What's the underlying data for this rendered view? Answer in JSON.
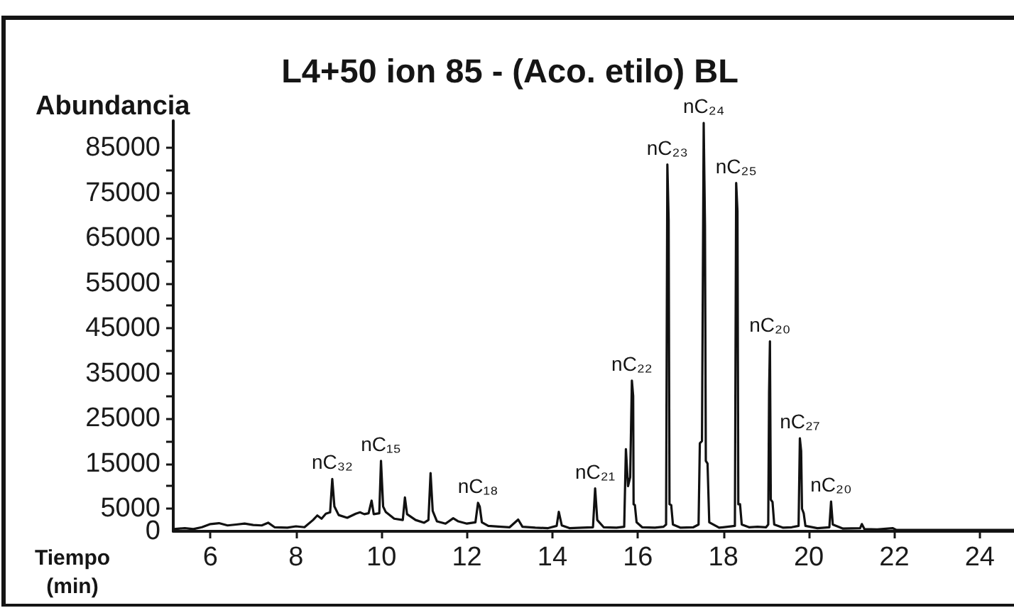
{
  "chart_data": {
    "type": "line",
    "title": "L4+50 ion 85 - (Aco. etilo) BL",
    "xlabel": "Tiempo\n(min)",
    "ylabel": "Abundancia",
    "color": "#111111",
    "marker": "none",
    "xlim": [
      5.13,
      24.8
    ],
    "xticks": [
      6,
      8,
      10,
      12,
      14,
      16,
      18,
      20,
      22,
      24
    ],
    "ylim": [
      0,
      91000
    ],
    "yticks": [
      0,
      5000,
      {
        "value": 10000,
        "label": null
      },
      15000,
      {
        "value": 20000,
        "label": null
      },
      25000,
      {
        "value": 30000,
        "label": null
      },
      35000,
      {
        "value": 40000,
        "label": null
      },
      45000,
      {
        "value": 50000,
        "label": null
      },
      55000,
      {
        "value": 60000,
        "label": null
      },
      65000,
      {
        "value": 70000,
        "label": null
      },
      75000,
      {
        "value": 80000,
        "label": null
      },
      85000
    ],
    "x": [
      5.15,
      5.4,
      5.6,
      5.8,
      6.0,
      6.2,
      6.4,
      6.6,
      6.8,
      7.0,
      7.2,
      7.35,
      7.5,
      7.8,
      8.0,
      8.2,
      8.4,
      8.5,
      8.6,
      8.7,
      8.8,
      8.85,
      8.9,
      9.0,
      9.2,
      9.4,
      9.5,
      9.6,
      9.7,
      9.77,
      9.82,
      9.95,
      9.99,
      10.04,
      10.1,
      10.3,
      10.5,
      10.55,
      10.6,
      10.8,
      11.0,
      11.1,
      11.15,
      11.2,
      11.3,
      11.5,
      11.68,
      11.8,
      12.0,
      12.2,
      12.26,
      12.3,
      12.35,
      12.5,
      12.8,
      13.0,
      13.2,
      13.3,
      13.6,
      13.9,
      14.1,
      14.15,
      14.22,
      14.4,
      14.7,
      14.95,
      15.0,
      15.05,
      15.2,
      15.5,
      15.68,
      15.72,
      15.77,
      15.82,
      15.86,
      15.89,
      15.9,
      15.93,
      15.97,
      16.1,
      16.4,
      16.6,
      16.66,
      16.69,
      16.72,
      16.74,
      16.78,
      16.82,
      17.0,
      17.3,
      17.42,
      17.45,
      17.5,
      17.54,
      17.57,
      17.59,
      17.63,
      17.67,
      17.9,
      18.1,
      18.27,
      18.3,
      18.33,
      18.35,
      18.39,
      18.43,
      18.6,
      18.8,
      19.0,
      19.05,
      19.07,
      19.09,
      19.11,
      19.15,
      19.19,
      19.4,
      19.6,
      19.76,
      19.79,
      19.82,
      19.84,
      19.88,
      19.92,
      20.2,
      20.48,
      20.52,
      20.56,
      20.8,
      21.2,
      21.24,
      21.3,
      21.6,
      21.96,
      22.05,
      23.0,
      24.0,
      24.8
    ],
    "values": [
      500,
      700,
      500,
      900,
      1600,
      1800,
      1300,
      1500,
      1700,
      1400,
      1300,
      1900,
      900,
      800,
      1100,
      900,
      2500,
      3500,
      2800,
      3900,
      4200,
      11600,
      5500,
      3600,
      3000,
      3900,
      4200,
      3800,
      4000,
      6800,
      3800,
      4000,
      15600,
      5500,
      4300,
      2800,
      2500,
      7500,
      3800,
      2500,
      1900,
      2500,
      12900,
      4500,
      2200,
      1700,
      2900,
      2200,
      1700,
      2000,
      6300,
      5500,
      2000,
      1200,
      1000,
      900,
      2600,
      1000,
      800,
      700,
      1200,
      4300,
      1300,
      700,
      800,
      900,
      9500,
      2500,
      900,
      800,
      1000,
      18200,
      10000,
      12000,
      33400,
      30000,
      6000,
      5800,
      2000,
      900,
      800,
      1000,
      1500,
      81300,
      69000,
      6000,
      5800,
      1500,
      800,
      900,
      1500,
      19500,
      20000,
      90500,
      67900,
      15600,
      15000,
      2000,
      800,
      1000,
      1200,
      77200,
      71000,
      6000,
      6000,
      1500,
      900,
      1000,
      900,
      1500,
      30800,
      42100,
      7000,
      6500,
      1500,
      800,
      900,
      1200,
      20600,
      17800,
      5000,
      4000,
      1200,
      700,
      900,
      6600,
      1500,
      600,
      700,
      1600,
      500,
      400,
      700,
      300,
      300,
      300,
      300
    ],
    "annotations": [
      {
        "text": "nC₃₂",
        "x": 8.85,
        "y": 11600
      },
      {
        "text": "nC₁₅",
        "x": 9.99,
        "y": 15600
      },
      {
        "text": "nC₁₈",
        "x": 12.26,
        "y": 6300
      },
      {
        "text": "nC₂₁",
        "x": 15.0,
        "y": 9500
      },
      {
        "text": "nC₂₂",
        "x": 15.86,
        "y": 33400
      },
      {
        "text": "nC₂₃",
        "x": 16.69,
        "y": 81300
      },
      {
        "text": "nC₂₄",
        "x": 17.54,
        "y": 90500
      },
      {
        "text": "nC₂₅",
        "x": 18.3,
        "y": 77200
      },
      {
        "text": "nC₂₀",
        "x": 19.09,
        "y": 42100
      },
      {
        "text": "nC₂₇",
        "x": 19.79,
        "y": 20600
      },
      {
        "text": "nC₂₀",
        "x": 20.52,
        "y": 6600
      }
    ]
  }
}
